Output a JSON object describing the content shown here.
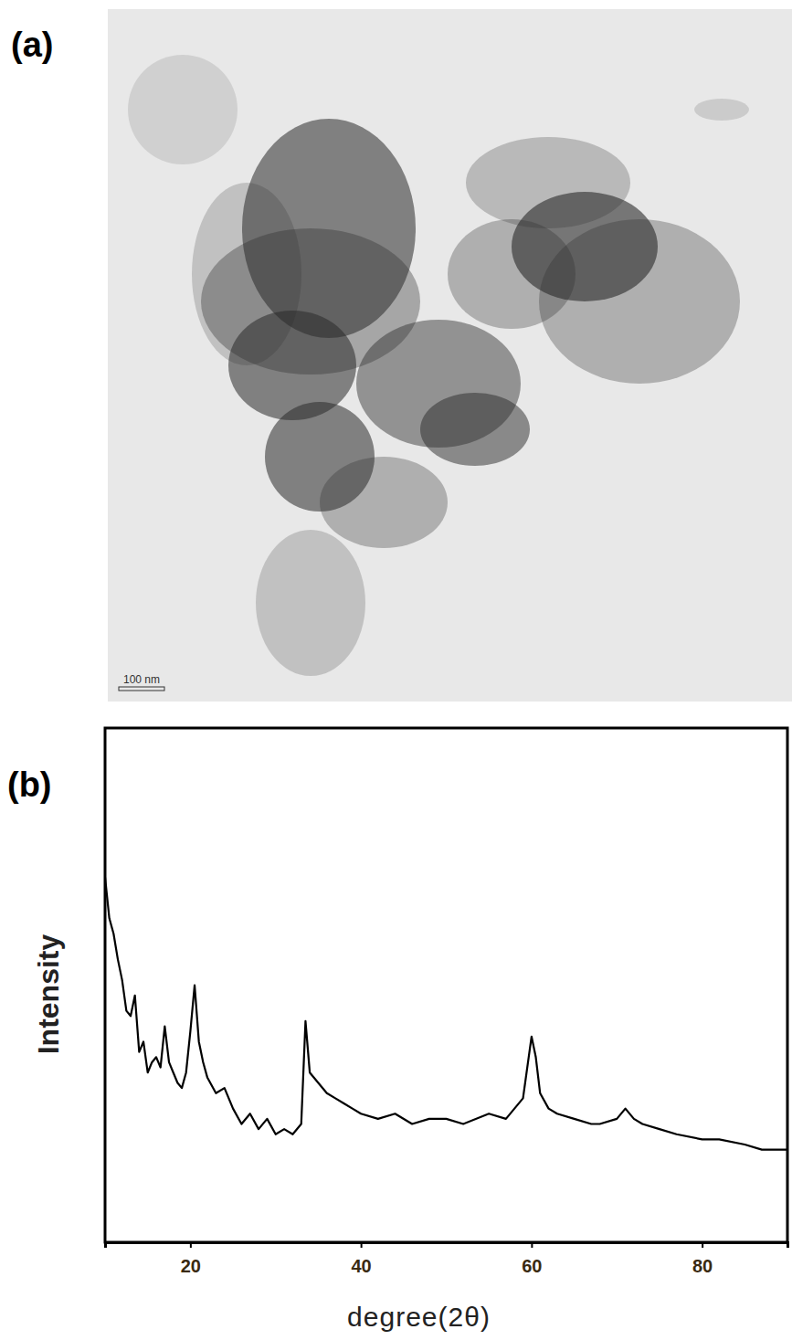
{
  "panel_labels": [
    "(a)",
    "(b)"
  ],
  "image": {
    "scale_bar": "100 nm"
  },
  "chart_data": {
    "type": "line",
    "x_label": "degree(2θ)",
    "y_label": "Intensity",
    "x": [
      10,
      10.5,
      11,
      11.5,
      12,
      12.5,
      13,
      13.5,
      14,
      14.5,
      15,
      15.5,
      16,
      16.5,
      17,
      17.5,
      18,
      18.5,
      19,
      19.5,
      20,
      20.5,
      21,
      21.5,
      22,
      23,
      24,
      25,
      26,
      27,
      28,
      29,
      30,
      31,
      32,
      33,
      33.5,
      34,
      35,
      36,
      37,
      38,
      39,
      40,
      42,
      44,
      46,
      48,
      50,
      52,
      55,
      57,
      58,
      59,
      59.5,
      60,
      60.5,
      61,
      62,
      63,
      65,
      67,
      68,
      70,
      71,
      72,
      73,
      75,
      77,
      80,
      82,
      85,
      87,
      90
    ],
    "values": [
      71,
      63,
      60,
      55,
      51,
      45,
      44,
      48,
      37,
      39,
      33,
      35,
      36,
      34,
      42,
      35,
      33,
      31,
      30,
      33,
      41,
      50,
      39,
      35,
      32,
      29,
      30,
      26,
      23,
      25,
      22,
      24,
      21,
      22,
      21,
      23,
      43,
      33,
      31,
      29,
      28,
      27,
      26,
      25,
      24,
      25,
      23,
      24,
      24,
      23,
      25,
      24,
      26,
      28,
      34,
      40,
      36,
      29,
      26,
      25,
      24,
      23,
      23,
      24,
      26,
      24,
      23,
      22,
      21,
      20,
      20,
      19,
      18,
      18
    ],
    "color": "#000000",
    "xlim": [
      10,
      90
    ],
    "ylim": [
      0,
      100
    ],
    "xticks": [
      20,
      40,
      60,
      80
    ],
    "tick_labels": "x"
  }
}
